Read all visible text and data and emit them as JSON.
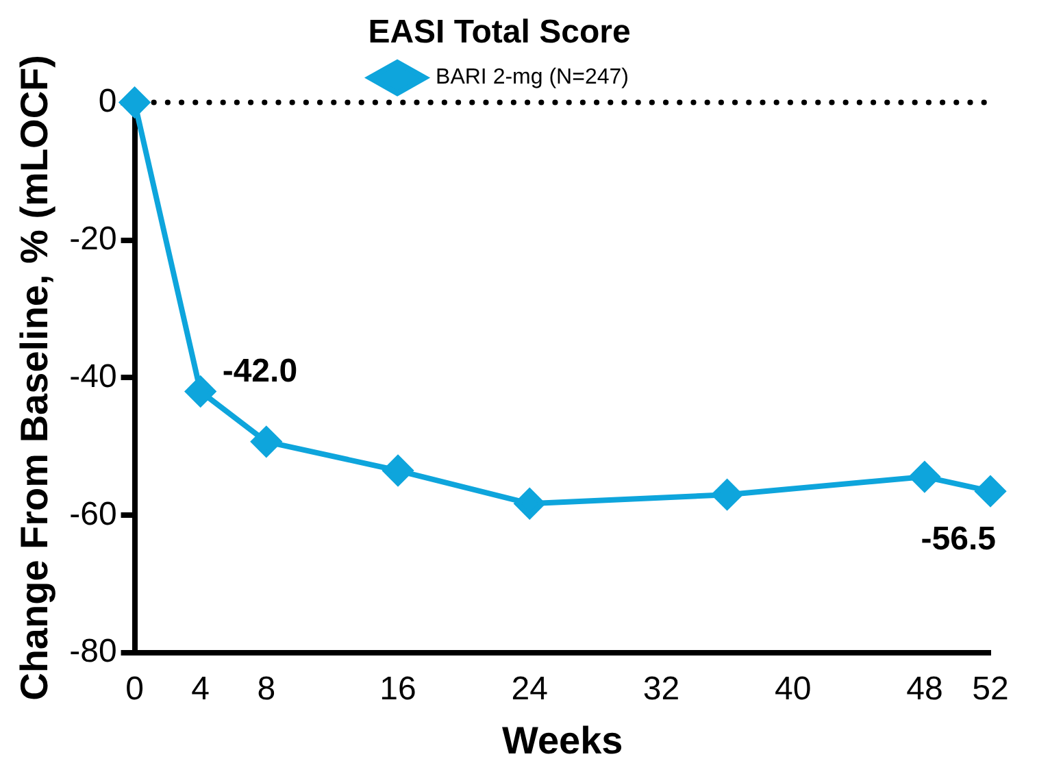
{
  "chart_data": {
    "type": "line",
    "title": "EASI Total Score",
    "xlabel": "Weeks",
    "ylabel": "Change From Baseline, % (mLOCF)",
    "x": [
      0,
      4,
      8,
      16,
      24,
      36,
      48,
      52
    ],
    "series": [
      {
        "name": "BARI 2-mg (N=247)",
        "color": "#0ea5dc",
        "values": [
          0,
          -42.0,
          -49.3,
          -53.5,
          -58.3,
          -57.0,
          -54.4,
          -56.5
        ],
        "value_labels": [
          null,
          "-42.0",
          null,
          null,
          null,
          null,
          null,
          "-56.5"
        ]
      }
    ],
    "xlim": [
      0,
      52
    ],
    "xticks": [
      0,
      4,
      8,
      16,
      24,
      32,
      40,
      48,
      52
    ],
    "ylim": [
      -80,
      0
    ],
    "yticks": [
      -80,
      -60,
      -40,
      -20,
      0
    ],
    "ref_lines": [
      {
        "axis": "y",
        "value": 0,
        "line_style": "dotted",
        "color": "#000000"
      }
    ],
    "grid": false,
    "legend": "top",
    "marker": "diamond",
    "line_style": "solid"
  }
}
